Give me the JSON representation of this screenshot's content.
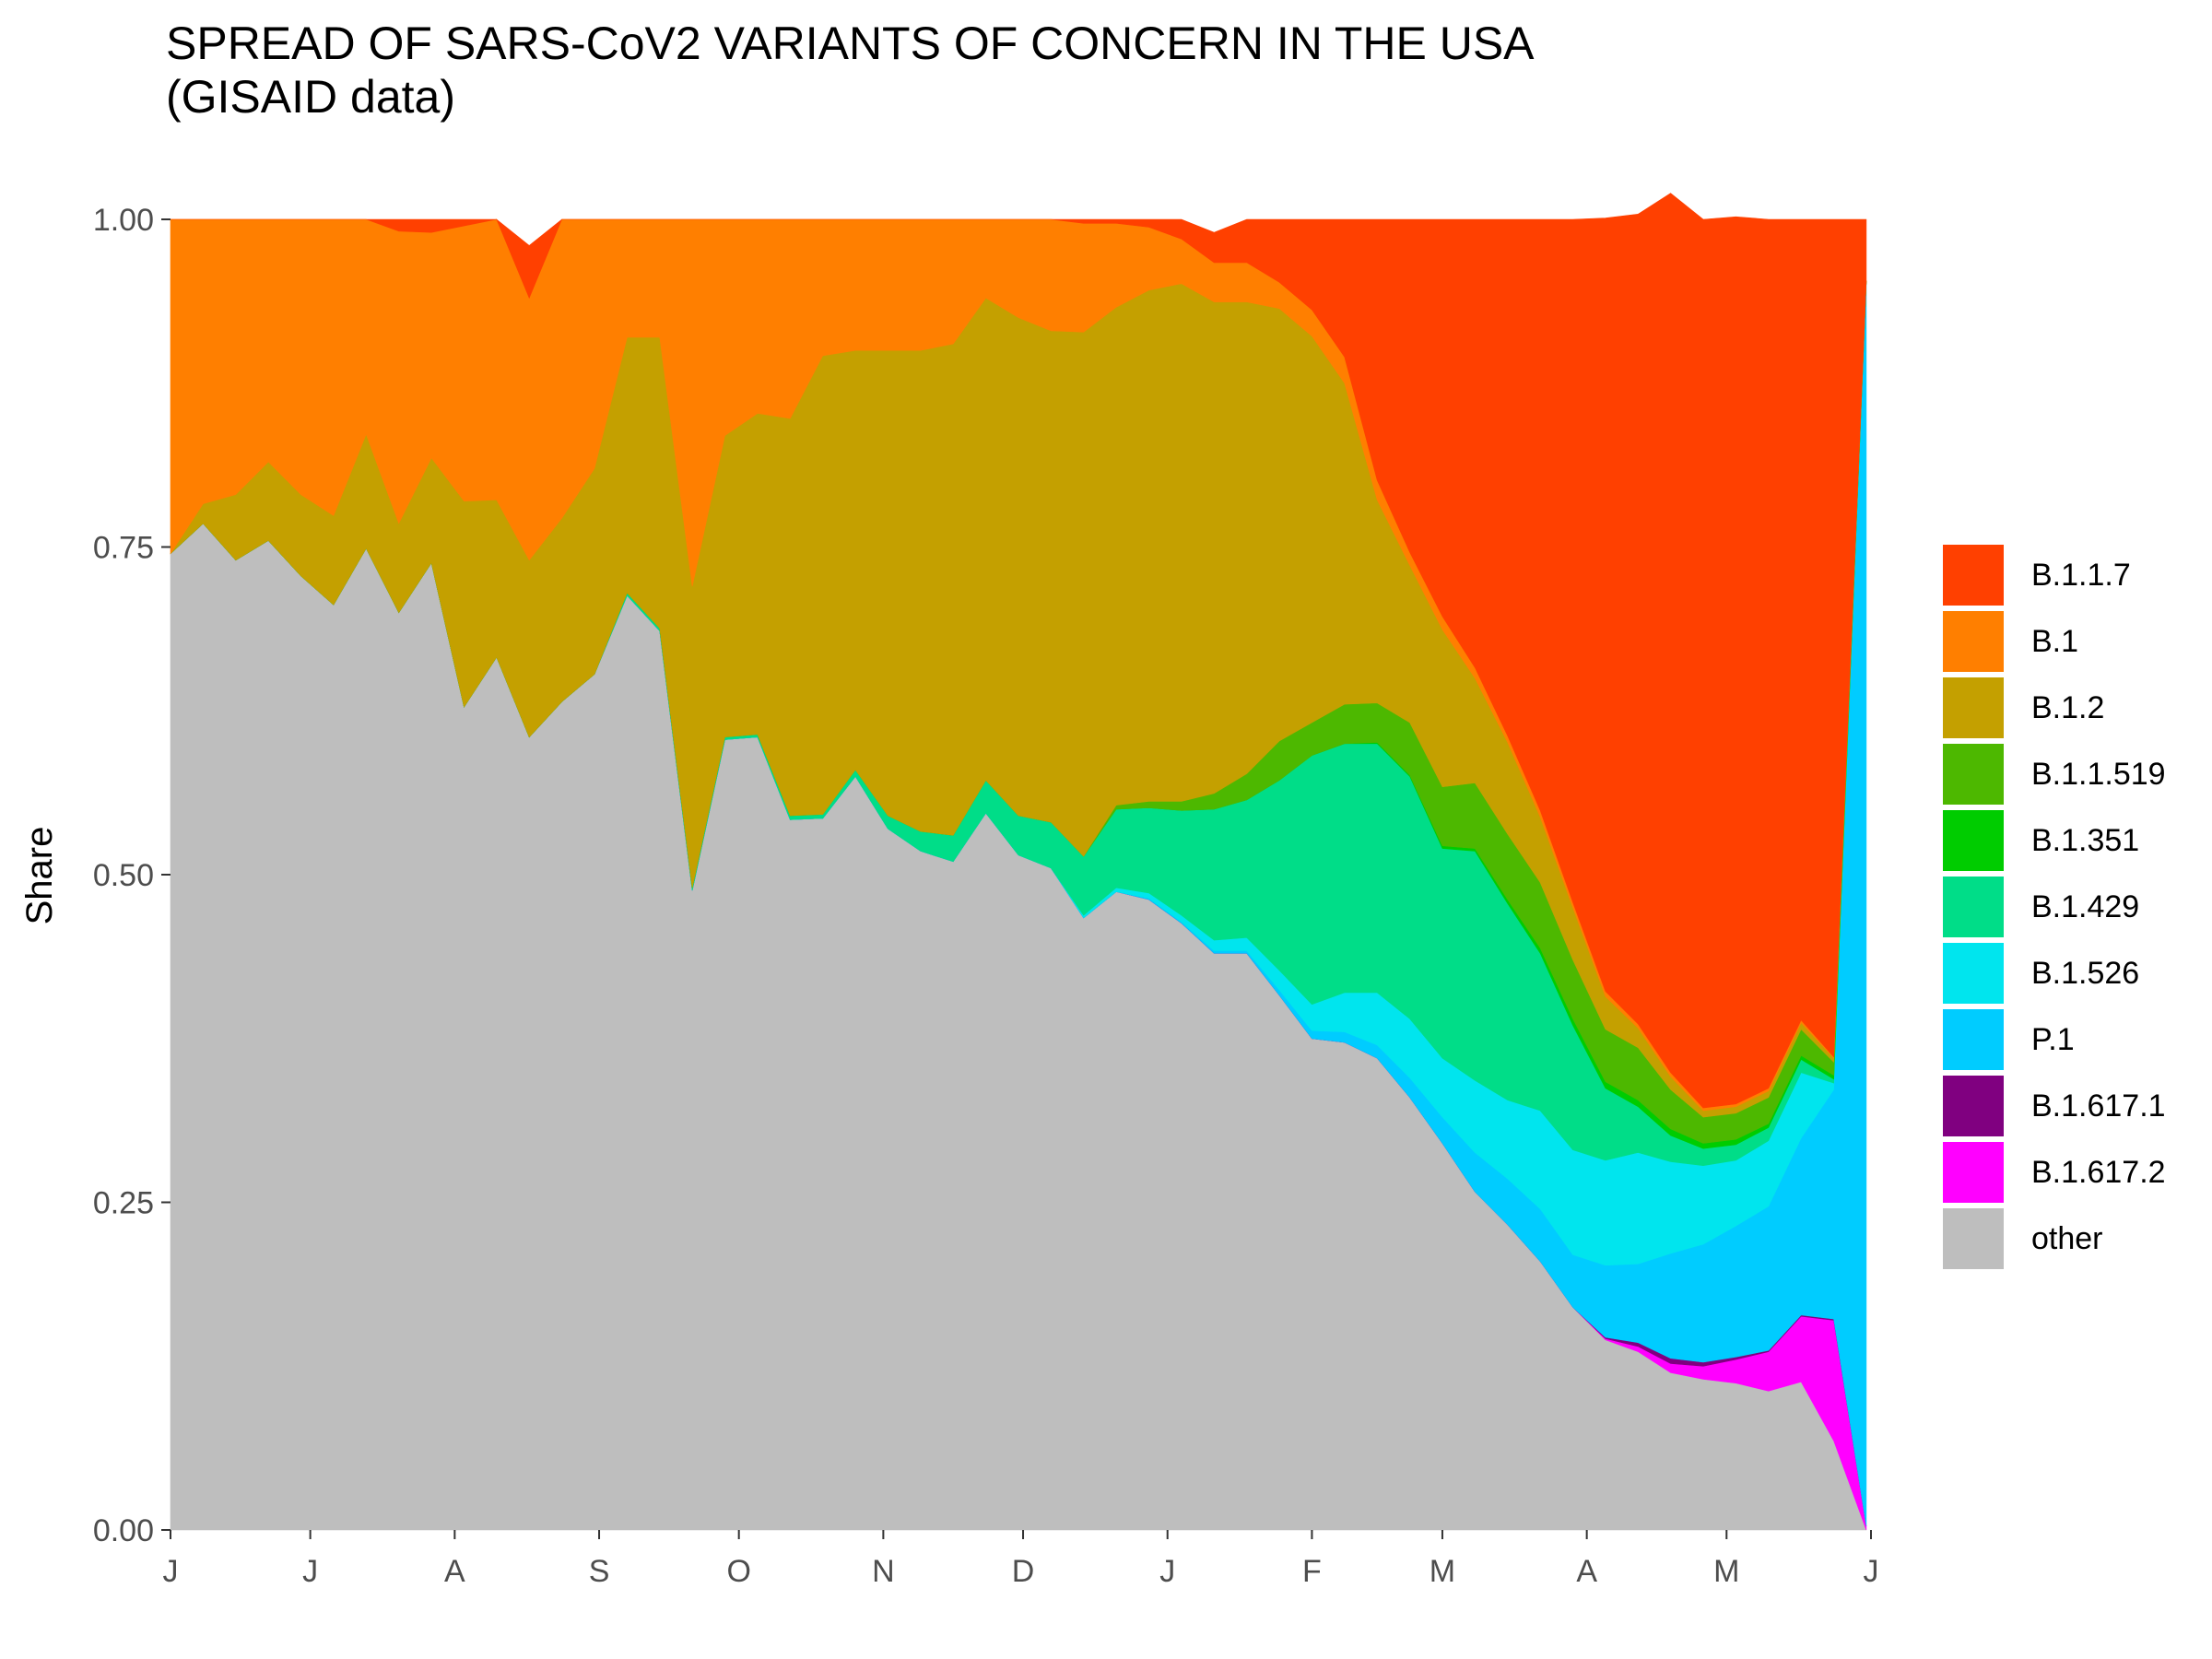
{
  "title_line1": "SPREAD OF SARS-CoV2 VARIANTS OF CONCERN IN THE USA",
  "title_line2": "(GISAID data)",
  "chart_data": {
    "type": "area",
    "stacked": true,
    "title": "SPREAD OF SARS-CoV2 VARIANTS OF CONCERN IN THE USA (GISAID data)",
    "xlabel": "",
    "ylabel": "Share",
    "ylim": [
      0,
      1
    ],
    "xlim": [
      "2020-06-01",
      "2021-06-01"
    ],
    "y_ticks": [
      "0.00",
      "0.25",
      "0.50",
      "0.75",
      "1.00"
    ],
    "x_tick_labels": [
      "J",
      "J",
      "A",
      "S",
      "O",
      "N",
      "D",
      "J",
      "F",
      "M",
      "A",
      "M",
      "J"
    ],
    "x_tick_dates": [
      "2020-06-01",
      "2020-07-01",
      "2020-08-01",
      "2020-09-01",
      "2020-10-01",
      "2020-11-01",
      "2020-12-01",
      "2021-01-01",
      "2021-02-01",
      "2021-03-01",
      "2021-04-01",
      "2021-05-01",
      "2021-06-01"
    ],
    "grid": false,
    "legend_position": "right",
    "x": [
      "2020-06-01",
      "2020-06-08",
      "2020-06-15",
      "2020-06-22",
      "2020-06-29",
      "2020-07-06",
      "2020-07-13",
      "2020-07-20",
      "2020-07-27",
      "2020-08-03",
      "2020-08-10",
      "2020-08-17",
      "2020-08-24",
      "2020-08-31",
      "2020-09-07",
      "2020-09-14",
      "2020-09-21",
      "2020-09-28",
      "2020-10-05",
      "2020-10-12",
      "2020-10-19",
      "2020-10-26",
      "2020-11-02",
      "2020-11-09",
      "2020-11-16",
      "2020-11-23",
      "2020-11-30",
      "2020-12-07",
      "2020-12-14",
      "2020-12-21",
      "2020-12-28",
      "2021-01-04",
      "2021-01-11",
      "2021-01-18",
      "2021-01-25",
      "2021-02-01",
      "2021-02-08",
      "2021-02-15",
      "2021-02-22",
      "2021-03-01",
      "2021-03-08",
      "2021-03-15",
      "2021-03-22",
      "2021-03-29",
      "2021-04-05",
      "2021-04-12",
      "2021-04-19",
      "2021-04-26",
      "2021-05-03",
      "2021-05-10",
      "2021-05-17",
      "2021-05-24",
      "2021-05-31"
    ],
    "series": [
      {
        "name": "other",
        "color": "#bebebe",
        "values": [
          0.745,
          0.768,
          0.74,
          0.755,
          0.728,
          0.706,
          0.749,
          0.7,
          0.738,
          0.628,
          0.666,
          0.605,
          0.632,
          0.653,
          0.713,
          0.686,
          0.488,
          0.603,
          0.605,
          0.542,
          0.543,
          0.575,
          0.535,
          0.518,
          0.51,
          0.547,
          0.515,
          0.505,
          0.467,
          0.487,
          0.481,
          0.463,
          0.44,
          0.44,
          0.408,
          0.375,
          0.372,
          0.36,
          0.33,
          0.295,
          0.258,
          0.233,
          0.205,
          0.17,
          0.145,
          0.136,
          0.12,
          0.115,
          0.112,
          0.106,
          0.113,
          0.068,
          0.0
        ]
      },
      {
        "name": "B.1.617.2",
        "color": "#ff00ff",
        "values": [
          0,
          0,
          0,
          0,
          0,
          0,
          0,
          0,
          0,
          0,
          0,
          0,
          0,
          0,
          0,
          0,
          0,
          0,
          0,
          0,
          0,
          0,
          0,
          0,
          0,
          0,
          0,
          0,
          0,
          0,
          0,
          0,
          0,
          0,
          0,
          0,
          0,
          0,
          0,
          0,
          0,
          0,
          0,
          0,
          0.001,
          0.004,
          0.007,
          0.01,
          0.018,
          0.03,
          0.05,
          0.092,
          0.003
        ]
      },
      {
        "name": "B.1.617.1",
        "color": "#800080",
        "values": [
          0,
          0,
          0,
          0,
          0,
          0,
          0,
          0,
          0,
          0,
          0,
          0,
          0,
          0,
          0,
          0,
          0,
          0,
          0,
          0,
          0,
          0,
          0,
          0,
          0,
          0,
          0,
          0,
          0,
          0,
          0,
          0,
          0,
          0,
          0,
          0,
          0,
          0,
          0,
          0,
          0,
          0,
          0,
          0,
          0.001,
          0.003,
          0.004,
          0.003,
          0.002,
          0.001,
          0.001,
          0.001,
          0.0
        ]
      },
      {
        "name": "P.1",
        "color": "#00ccff",
        "values": [
          0,
          0,
          0,
          0,
          0,
          0,
          0,
          0,
          0,
          0,
          0,
          0,
          0,
          0,
          0,
          0,
          0,
          0,
          0,
          0,
          0,
          0,
          0,
          0,
          0,
          0,
          0,
          0,
          0,
          0,
          0.001,
          0.001,
          0.002,
          0.002,
          0.004,
          0.006,
          0.008,
          0.01,
          0.015,
          0.02,
          0.03,
          0.035,
          0.04,
          0.04,
          0.055,
          0.06,
          0.08,
          0.09,
          0.1,
          0.11,
          0.135,
          0.175,
          0.95
        ]
      },
      {
        "name": "B.1.526",
        "color": "#00e5ee",
        "values": [
          0,
          0,
          0,
          0,
          0,
          0,
          0,
          0,
          0,
          0,
          0,
          0,
          0,
          0,
          0,
          0,
          0,
          0,
          0,
          0,
          0,
          0,
          0,
          0,
          0,
          0,
          0,
          0,
          0.002,
          0.003,
          0.004,
          0.005,
          0.008,
          0.01,
          0.015,
          0.02,
          0.03,
          0.04,
          0.045,
          0.045,
          0.055,
          0.06,
          0.075,
          0.08,
          0.08,
          0.085,
          0.07,
          0.06,
          0.05,
          0.05,
          0.05,
          0.005,
          0.0
        ]
      },
      {
        "name": "B.1.429",
        "color": "#00dd88",
        "values": [
          0,
          0,
          0,
          0,
          0,
          0,
          0,
          0,
          0,
          0,
          0,
          0,
          0,
          0,
          0.002,
          0.002,
          0.002,
          0.002,
          0.002,
          0.003,
          0.003,
          0.005,
          0.01,
          0.015,
          0.02,
          0.025,
          0.03,
          0.035,
          0.045,
          0.06,
          0.065,
          0.08,
          0.1,
          0.105,
          0.145,
          0.19,
          0.19,
          0.19,
          0.185,
          0.16,
          0.175,
          0.15,
          0.12,
          0.095,
          0.055,
          0.035,
          0.02,
          0.013,
          0.012,
          0.01,
          0.01,
          0.003,
          0.0
        ]
      },
      {
        "name": "B.1.351",
        "color": "#00cc00",
        "values": [
          0,
          0,
          0,
          0,
          0,
          0,
          0,
          0,
          0,
          0,
          0,
          0,
          0,
          0,
          0,
          0,
          0,
          0,
          0,
          0,
          0,
          0,
          0,
          0,
          0,
          0,
          0,
          0,
          0,
          0,
          0,
          0,
          0,
          0,
          0,
          0,
          0,
          0.001,
          0.001,
          0.002,
          0.002,
          0.003,
          0.004,
          0.005,
          0.005,
          0.005,
          0.005,
          0.004,
          0.004,
          0.003,
          0.003,
          0.003,
          0.0
        ]
      },
      {
        "name": "B.1.1.519",
        "color": "#4db800",
        "values": [
          0,
          0,
          0,
          0,
          0,
          0,
          0,
          0,
          0,
          0,
          0,
          0,
          0,
          0,
          0,
          0,
          0,
          0,
          0,
          0,
          0,
          0,
          0,
          0,
          0,
          0,
          0,
          0,
          0,
          0.003,
          0.005,
          0.007,
          0.012,
          0.02,
          0.03,
          0.025,
          0.03,
          0.03,
          0.04,
          0.045,
          0.05,
          0.05,
          0.05,
          0.045,
          0.04,
          0.04,
          0.03,
          0.02,
          0.02,
          0.02,
          0.02,
          0.01,
          0.0
        ]
      },
      {
        "name": "B.1.2",
        "color": "#c4a000",
        "values": [
          0.0,
          0.015,
          0.05,
          0.06,
          0.062,
          0.068,
          0.087,
          0.068,
          0.08,
          0.157,
          0.12,
          0.135,
          0.14,
          0.157,
          0.195,
          0.222,
          0.23,
          0.23,
          0.245,
          0.303,
          0.35,
          0.32,
          0.355,
          0.367,
          0.375,
          0.368,
          0.38,
          0.375,
          0.4,
          0.38,
          0.39,
          0.395,
          0.375,
          0.36,
          0.33,
          0.295,
          0.245,
          0.155,
          0.12,
          0.12,
          0.08,
          0.07,
          0.05,
          0.04,
          0.025,
          0.015,
          0.01,
          0.005,
          0.005,
          0.005,
          0.005,
          0.003,
          0.0
        ]
      },
      {
        "name": "B.1",
        "color": "#ff7f00",
        "values": [
          0.255,
          0.217,
          0.21,
          0.185,
          0.21,
          0.226,
          0.164,
          0.223,
          0.172,
          0.21,
          0.214,
          0.2,
          0.228,
          0.19,
          0.09,
          0.09,
          0.28,
          0.165,
          0.148,
          0.152,
          0.104,
          0.1,
          0.1,
          0.1,
          0.095,
          0.06,
          0.075,
          0.085,
          0.083,
          0.064,
          0.048,
          0.034,
          0.03,
          0.03,
          0.02,
          0.02,
          0.02,
          0.015,
          0.01,
          0.01,
          0.008,
          0.005,
          0.005,
          0.004,
          0.004,
          0.003,
          0.003,
          0.002,
          0.002,
          0.002,
          0.002,
          0.001,
          0.0
        ]
      },
      {
        "name": "B.1.1.7",
        "color": "#ff4000",
        "values": [
          0.0,
          0.0,
          0.0,
          0.0,
          0.0,
          0.0,
          0.0,
          0.009,
          0.01,
          0.005,
          0.0,
          0.04,
          0.0,
          0.0,
          0.0,
          0.0,
          0.0,
          0.0,
          0.0,
          0.0,
          0.0,
          0.0,
          0.0,
          0.0,
          0.0,
          0.0,
          0.0,
          0.0,
          0.003,
          0.003,
          0.006,
          0.015,
          0.023,
          0.033,
          0.048,
          0.069,
          0.105,
          0.199,
          0.254,
          0.303,
          0.342,
          0.394,
          0.451,
          0.521,
          0.59,
          0.618,
          0.671,
          0.678,
          0.677,
          0.663,
          0.611,
          0.639,
          0.047
        ]
      }
    ]
  }
}
